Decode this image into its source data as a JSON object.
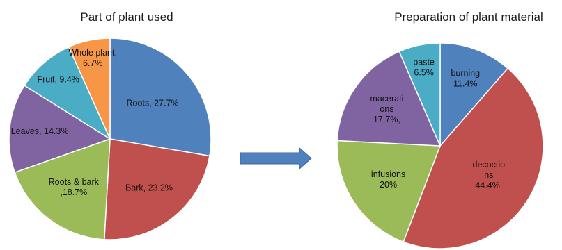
{
  "chart_data": [
    {
      "type": "pie",
      "title": "Part of plant used",
      "slices": [
        {
          "name": "Roots",
          "value": 27.7,
          "label_lines": [
            "Roots, 27.7%"
          ],
          "color": "#4F81BD"
        },
        {
          "name": "Bark",
          "value": 23.2,
          "label_lines": [
            "Bark, 23.2%"
          ],
          "color": "#C0504D"
        },
        {
          "name": "Roots & bark",
          "value": 18.7,
          "label_lines": [
            "Roots & bark",
            ",18.7%"
          ],
          "color": "#9BBB59"
        },
        {
          "name": "Leaves",
          "value": 14.3,
          "label_lines": [
            "Leaves, 14.3%"
          ],
          "color": "#8064A2"
        },
        {
          "name": "Fruit",
          "value": 9.4,
          "label_lines": [
            "Fruit, 9.4%"
          ],
          "color": "#4BACC6"
        },
        {
          "name": "Whole plant",
          "value": 6.7,
          "label_lines": [
            "Whole plant,",
            "6.7%"
          ],
          "color": "#F79646"
        }
      ]
    },
    {
      "type": "pie",
      "title": "Preparation of plant material",
      "slices": [
        {
          "name": "burning",
          "value": 11.4,
          "label_lines": [
            "burning",
            "11.4%"
          ],
          "color": "#4F81BD"
        },
        {
          "name": "decoctions",
          "value": 44.4,
          "label_lines": [
            "decoctio",
            "ns",
            "44.4%,"
          ],
          "color": "#C0504D"
        },
        {
          "name": "infusions",
          "value": 20,
          "label_lines": [
            "infusions",
            "20%"
          ],
          "color": "#9BBB59"
        },
        {
          "name": "macerations",
          "value": 17.7,
          "label_lines": [
            "macerati",
            "ons",
            "17.7%,"
          ],
          "color": "#8064A2"
        },
        {
          "name": "paste",
          "value": 6.5,
          "label_lines": [
            "paste",
            "6.5%"
          ],
          "color": "#4BACC6"
        }
      ]
    }
  ],
  "arrow": {
    "color": "#4F81BD"
  }
}
